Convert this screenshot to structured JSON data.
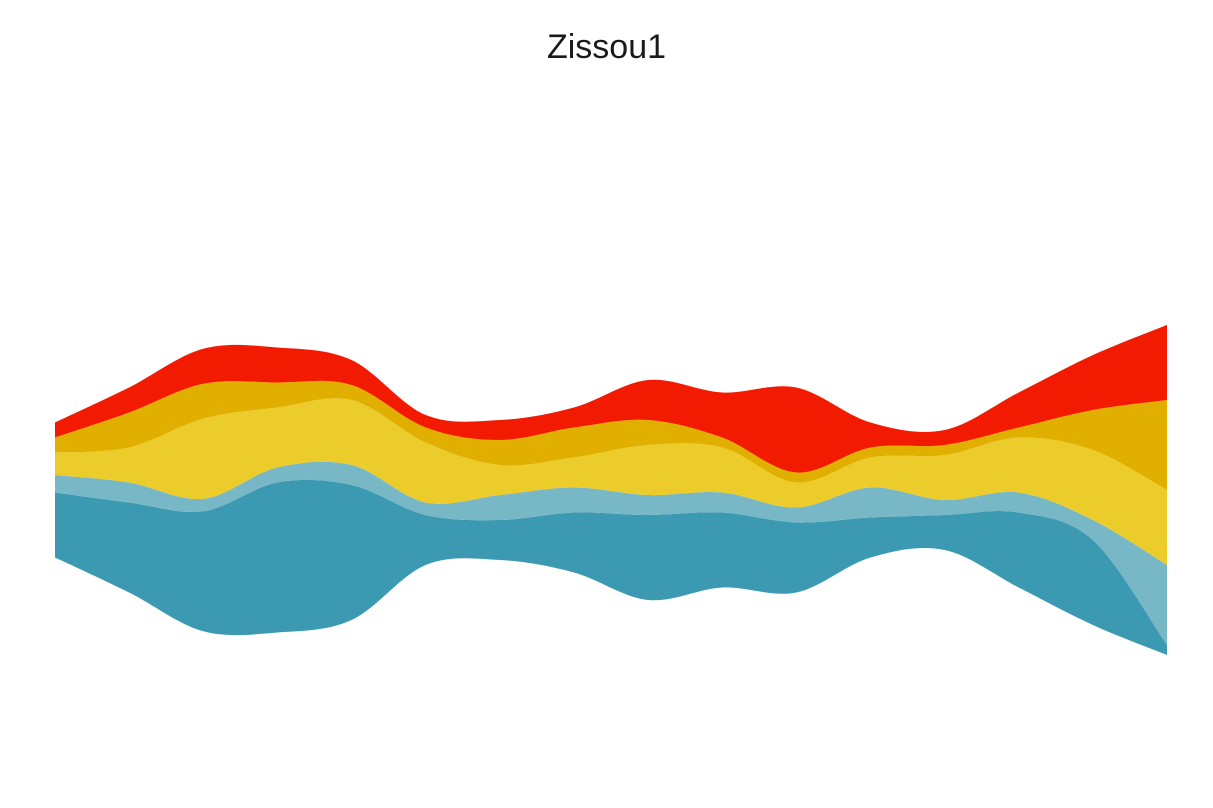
{
  "chart_data": {
    "type": "area",
    "subtype": "streamgraph",
    "title": "Zissou1",
    "xlabel": "",
    "ylabel": "",
    "grid": false,
    "legend": "none",
    "x": [
      1,
      2,
      3,
      4,
      5,
      6,
      7,
      8,
      9,
      10,
      11,
      12,
      13,
      14,
      15,
      16
    ],
    "series": [
      {
        "color": "#3B9AB2",
        "values": [
          13,
          18,
          24,
          30,
          27,
          10,
          8,
          12,
          17,
          15,
          14,
          8,
          7,
          15,
          17,
          2
        ]
      },
      {
        "color": "#78B7C5",
        "values": [
          3.5,
          4,
          2.5,
          3,
          4,
          2.5,
          5,
          5,
          4,
          4,
          3,
          6,
          3,
          4,
          4,
          16
        ]
      },
      {
        "color": "#EBCC2A",
        "values": [
          4.5,
          7,
          16,
          12,
          13,
          12,
          6,
          6,
          10,
          9,
          5,
          6,
          9,
          11,
          14,
          15
        ]
      },
      {
        "color": "#E1AF00",
        "values": [
          3,
          7,
          7,
          5,
          3,
          3,
          5,
          6,
          5,
          2,
          2,
          2,
          2,
          2,
          8,
          18
        ]
      },
      {
        "color": "#F21A00",
        "values": [
          3,
          5,
          7,
          7,
          5,
          2.5,
          4,
          4,
          8,
          9,
          17,
          5,
          3,
          7,
          11,
          15
        ]
      }
    ]
  }
}
